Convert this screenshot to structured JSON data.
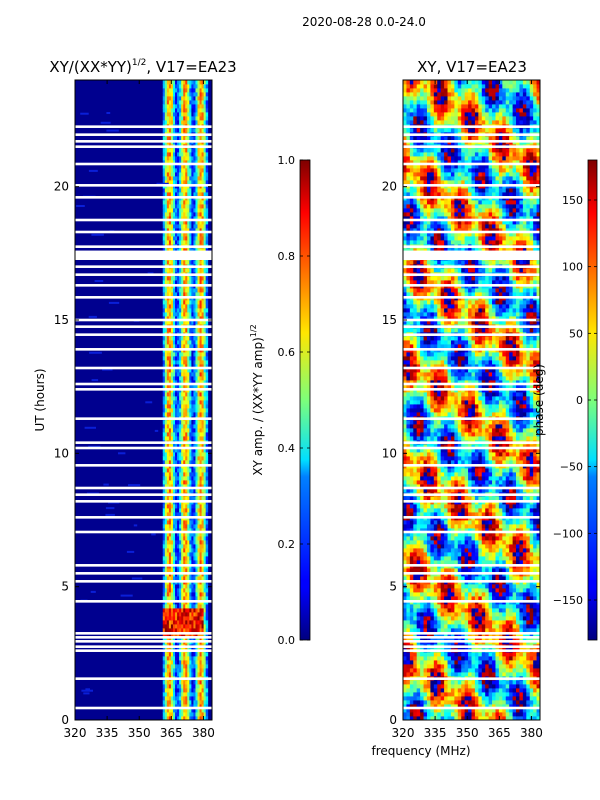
{
  "figure": {
    "suptitle": "2020-08-28 0.0-24.0",
    "xlabel": "frequency (MHz)"
  },
  "chart_data": [
    {
      "type": "heatmap",
      "title_main": "XY/(XX*YY)",
      "title_exp": "1/2",
      "title_suffix": ", V17=EA23",
      "xlabel": "frequency (MHz)",
      "ylabel": "UT (hours)",
      "xlim": [
        320,
        384
      ],
      "ylim": [
        0,
        24
      ],
      "xticks": [
        320,
        335,
        350,
        365,
        380
      ],
      "xtick_labels": [
        "320",
        "335",
        "350",
        "365",
        "380"
      ],
      "yticks": [
        0,
        5,
        10,
        15,
        20
      ],
      "ytick_labels": [
        "0",
        "5",
        "10",
        "15",
        "20"
      ],
      "colormap": "jet",
      "signal_band_mhz": [
        361,
        382
      ],
      "high_amplitude_band": {
        "freq_mhz": [
          361,
          380
        ],
        "ut_hours": [
          3.1,
          4.2
        ]
      },
      "colorbar": {
        "label_main": "XY amp. / (XX*YY amp)",
        "label_exp": "1/2",
        "range": [
          0.0,
          1.0
        ],
        "ticks": [
          0.0,
          0.2,
          0.4,
          0.6,
          0.8,
          1.0
        ],
        "tick_labels": [
          "0.0",
          "0.2",
          "0.4",
          "0.6",
          "0.8",
          "1.0"
        ]
      },
      "flagged_ut_hours": [
        0.45,
        1.55,
        2.6,
        2.75,
        2.95,
        3.1,
        3.25,
        4.45,
        5.2,
        5.5,
        5.8,
        7.05,
        7.6,
        8.2,
        8.45,
        8.7,
        9.55,
        10.2,
        10.4,
        11.3,
        12.4,
        12.6,
        13.2,
        13.9,
        14.45,
        14.75,
        15.0,
        15.85,
        16.3,
        16.7,
        17.0,
        17.55,
        17.75,
        18.3,
        18.75,
        19.6,
        20.05,
        20.85,
        21.5,
        21.7,
        21.95,
        22.25
      ]
    },
    {
      "type": "heatmap",
      "title": "XY, V17=EA23",
      "xlabel": "frequency (MHz)",
      "ylabel": "",
      "xlim": [
        320,
        384
      ],
      "ylim": [
        0,
        24
      ],
      "xticks": [
        320,
        335,
        350,
        365,
        380
      ],
      "xtick_labels": [
        "320",
        "335",
        "350",
        "365",
        "380"
      ],
      "yticks": [
        0,
        5,
        10,
        15,
        20
      ],
      "ytick_labels": [
        "0",
        "5",
        "10",
        "15",
        "20"
      ],
      "colormap": "jet",
      "colorbar": {
        "label": "phase (deg)",
        "range": [
          -180,
          180
        ],
        "ticks": [
          -150,
          -100,
          -50,
          0,
          50,
          100,
          150
        ],
        "tick_labels": [
          "−150",
          "−100",
          "−50",
          "0",
          "50",
          "100",
          "150"
        ]
      },
      "flagged_ut_hours": [
        0.45,
        1.55,
        2.6,
        2.75,
        2.95,
        3.1,
        3.25,
        4.45,
        5.2,
        5.5,
        5.8,
        7.05,
        7.6,
        8.2,
        8.45,
        8.7,
        9.55,
        10.2,
        10.4,
        11.3,
        12.4,
        12.6,
        13.2,
        13.9,
        14.45,
        14.75,
        15.0,
        15.85,
        16.3,
        16.7,
        17.0,
        17.55,
        17.75,
        18.3,
        18.75,
        19.6,
        20.05,
        20.85,
        21.5,
        21.7,
        21.95,
        22.25
      ]
    }
  ]
}
